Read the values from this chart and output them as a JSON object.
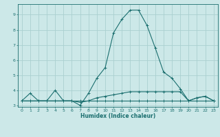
{
  "xlabel": "Humidex (Indice chaleur)",
  "background_color": "#cce8e8",
  "grid_color": "#aad0d0",
  "line_color": "#1a6e6e",
  "xlim": [
    -0.5,
    23.5
  ],
  "ylim": [
    2.9,
    9.7
  ],
  "yticks": [
    3,
    4,
    5,
    6,
    7,
    8,
    9
  ],
  "xticks": [
    0,
    1,
    2,
    3,
    4,
    5,
    6,
    7,
    8,
    9,
    10,
    11,
    12,
    13,
    14,
    15,
    16,
    17,
    18,
    19,
    20,
    21,
    22,
    23
  ],
  "series": [
    {
      "x": [
        0,
        1,
        2,
        3,
        4,
        5,
        6,
        7,
        8,
        9,
        10,
        11,
        12,
        13,
        14,
        15,
        16,
        17,
        18,
        19,
        20,
        21,
        22,
        23
      ],
      "y": [
        3.3,
        3.8,
        3.3,
        3.3,
        4.0,
        3.3,
        3.3,
        3.0,
        3.8,
        4.8,
        5.5,
        7.8,
        8.7,
        9.3,
        9.3,
        8.3,
        6.8,
        5.2,
        4.8,
        4.1,
        3.3,
        3.5,
        3.6,
        3.3
      ]
    },
    {
      "x": [
        0,
        1,
        2,
        3,
        4,
        5,
        6,
        7,
        8,
        9,
        10,
        11,
        12,
        13,
        14,
        15,
        16,
        17,
        18,
        19,
        20,
        21,
        22,
        23
      ],
      "y": [
        3.3,
        3.3,
        3.3,
        3.3,
        3.3,
        3.3,
        3.3,
        3.3,
        3.3,
        3.3,
        3.3,
        3.3,
        3.3,
        3.3,
        3.3,
        3.3,
        3.3,
        3.3,
        3.3,
        3.3,
        3.3,
        3.3,
        3.3,
        3.3
      ]
    },
    {
      "x": [
        0,
        1,
        2,
        3,
        4,
        5,
        6,
        7,
        8,
        9,
        10,
        11,
        12,
        13,
        14,
        15,
        16,
        17,
        18,
        19,
        20,
        21,
        22,
        23
      ],
      "y": [
        3.3,
        3.3,
        3.3,
        3.3,
        3.3,
        3.3,
        3.3,
        3.2,
        3.3,
        3.5,
        3.6,
        3.7,
        3.8,
        3.9,
        3.9,
        3.9,
        3.9,
        3.9,
        3.9,
        3.9,
        3.3,
        3.5,
        3.6,
        3.3
      ]
    }
  ]
}
